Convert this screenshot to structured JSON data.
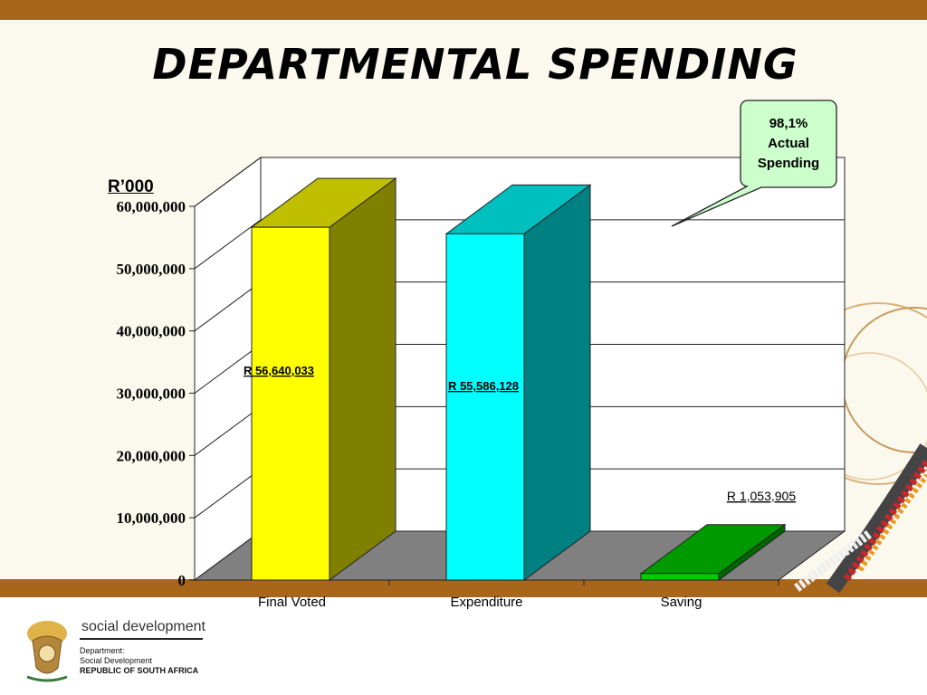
{
  "slide": {
    "title": "DEPARTMENTAL SPENDING",
    "colors": {
      "band": "#a8661a",
      "background": "#fbf8ee"
    }
  },
  "chart_data": {
    "type": "bar",
    "style": "3d",
    "unit_label": "R’000",
    "categories": [
      "Final Voted",
      "Expenditure",
      "Saving"
    ],
    "values": [
      56640033,
      55586128,
      1053905
    ],
    "data_labels": [
      "R 56,640,033",
      "R 55,586,128",
      "R 1,053,905"
    ],
    "colors": [
      "#ffff00",
      "#00ffff",
      "#00cc00"
    ],
    "ylim": [
      0,
      60000000
    ],
    "yticks": [
      "0",
      "10,000,000",
      "20,000,000",
      "30,000,000",
      "40,000,000",
      "50,000,000",
      "60,000,000"
    ],
    "grid": true
  },
  "callout": {
    "lines": [
      "98,1%",
      "Actual",
      "Spending"
    ],
    "color": "#ccffcc"
  },
  "footer": {
    "brand": "social development",
    "dept_lines": [
      "Department:",
      "Social Development",
      "REPUBLIC OF SOUTH AFRICA"
    ]
  }
}
